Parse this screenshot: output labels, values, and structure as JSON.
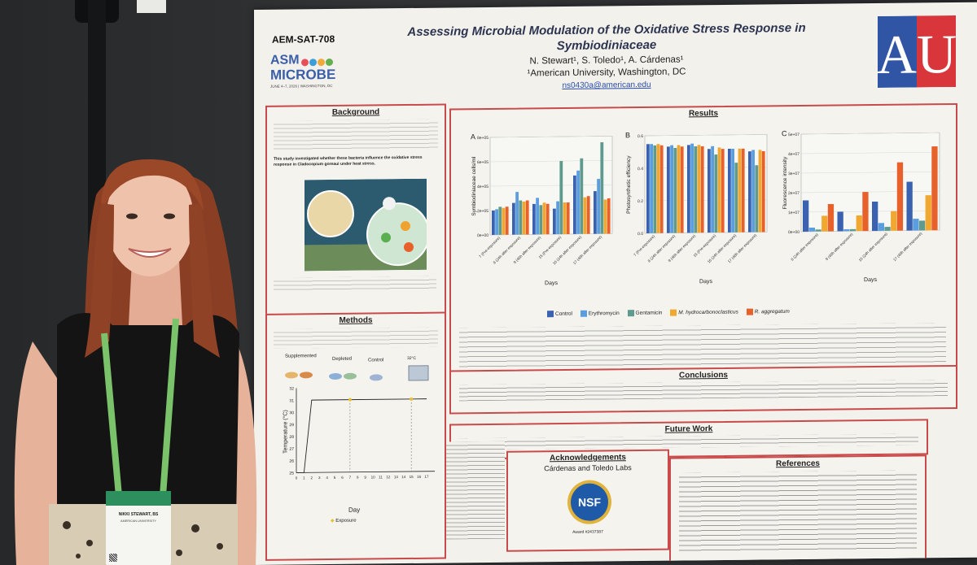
{
  "poster": {
    "id": "AEM-SAT-708",
    "title_line1": "Assessing Microbial Modulation of the Oxidative Stress Response in",
    "title_line2": "Symbiodiniaceae",
    "authors": "N. Stewart¹, S. Toledo¹, A. Cárdenas¹",
    "affiliation": "¹American University, Washington, DC",
    "email": "ns0430a@american.edu",
    "asm_top": "ASM",
    "asm_bottom": "MICROBE",
    "asm_date": "JUNE 4–7, 2026 | WASHINGTON, DC",
    "au_letters": "AU",
    "background": {
      "heading": "Background",
      "key_line": "This study investigated whether these bacteria influence the oxidative stress response in Cladocopium goreaui under heat stress."
    },
    "methods": {
      "heading": "Methods",
      "groups": [
        "Supplemented",
        "Depleted",
        "Control"
      ],
      "temp_label": "32°C",
      "temp_axis": "Temperature (°C)",
      "day_axis": "Day",
      "exposure_label": "Exposure",
      "temp_ticks": [
        "32",
        "31",
        "30",
        "29",
        "28",
        "27",
        "26",
        "25"
      ],
      "day_ticks": [
        "0",
        "1",
        "2",
        "3",
        "4",
        "5",
        "6",
        "7",
        "8",
        "9",
        "10",
        "11",
        "12",
        "13",
        "14",
        "15",
        "16",
        "17"
      ]
    },
    "results": {
      "heading": "Results",
      "panel_a": "A",
      "panel_b": "B",
      "panel_c": "C",
      "a_ylabel": "Symbiodiniaceae cells/ml",
      "b_ylabel": "Photosynthetic efficiency",
      "c_ylabel": "Fluorescence intensity",
      "xlabel": "Days",
      "a_ticks": [
        "8e+05",
        "6e+05",
        "4e+05",
        "2e+05",
        "0e+00"
      ],
      "b_ticks": [
        "0.6",
        "0.4",
        "0.2",
        "0.0"
      ],
      "c_ticks": [
        "5e+07",
        "4e+07",
        "3e+07",
        "2e+07",
        "1e+07",
        "0e+00"
      ],
      "a_cats": [
        "7 (Pre-exposure)",
        "8 (24h after exposure)",
        "9 (48h after exposure)",
        "15 (Pre-exposure)",
        "16 (24h after exposure)",
        "17 (48h after exposure)"
      ],
      "c_cats": [
        "8 (24h after exposure)",
        "9 (48h after exposure)",
        "16 (24h after exposure)",
        "17 (48h after exposure)"
      ],
      "legend": [
        "Control",
        "Erythromycin",
        "Gentamicin",
        "M. hydrocarbonoclasticus",
        "R. aggregatum"
      ]
    },
    "conclusions": {
      "heading": "Conclusions"
    },
    "future": {
      "heading": "Future Work"
    },
    "ack": {
      "heading": "Acknowledgements",
      "line": "Cárdenas and Toledo Labs",
      "nsf": "NSF",
      "award": "Award #2437387"
    },
    "references": {
      "heading": "References"
    }
  },
  "badge": {
    "name": "NIKKI STEWART, BS",
    "affiliation": "AMERICAN UNIVERSITY"
  },
  "colors": {
    "control": "#3a62b0",
    "erythromycin": "#5b9ee0",
    "gentamicin": "#5f9a8e",
    "mhydro": "#f0a830",
    "ragg": "#e8602a",
    "border": "#c84a4a"
  },
  "chart_data": [
    {
      "type": "bar",
      "panel": "A",
      "categories": [
        "7 (Pre-exposure)",
        "8 (24h after exposure)",
        "9 (48h after exposure)",
        "15 (Pre-exposure)",
        "16 (24h after exposure)",
        "17 (48h after exposure)"
      ],
      "ylim": [
        0,
        800000
      ],
      "series": [
        {
          "name": "Control",
          "values": [
            200000,
            260000,
            250000,
            210000,
            480000,
            350000
          ]
        },
        {
          "name": "Erythromycin",
          "values": [
            210000,
            350000,
            300000,
            270000,
            520000,
            450000
          ]
        },
        {
          "name": "Gentamicin",
          "values": [
            230000,
            280000,
            240000,
            600000,
            620000,
            750000
          ]
        },
        {
          "name": "M. hydrocarbonoclasticus",
          "values": [
            220000,
            270000,
            260000,
            260000,
            300000,
            280000
          ]
        },
        {
          "name": "R. aggregatum",
          "values": [
            230000,
            280000,
            250000,
            260000,
            310000,
            290000
          ]
        }
      ]
    },
    {
      "type": "bar",
      "panel": "B",
      "categories": [
        "7 (Pre-exposure)",
        "8 (24h after exposure)",
        "9 (48h after exposure)",
        "15 (Pre-exposure)",
        "16 (24h after exposure)",
        "17 (48h after exposure)"
      ],
      "ylim": [
        0,
        0.7
      ],
      "series": [
        {
          "name": "Control",
          "values": [
            0.64,
            0.62,
            0.63,
            0.6,
            0.6,
            0.58
          ]
        },
        {
          "name": "Erythromycin",
          "values": [
            0.64,
            0.63,
            0.64,
            0.62,
            0.6,
            0.59
          ]
        },
        {
          "name": "Gentamicin",
          "values": [
            0.63,
            0.61,
            0.62,
            0.56,
            0.5,
            0.48
          ]
        },
        {
          "name": "M. hydrocarbonoclasticus",
          "values": [
            0.64,
            0.63,
            0.63,
            0.61,
            0.6,
            0.59
          ]
        },
        {
          "name": "R. aggregatum",
          "values": [
            0.63,
            0.62,
            0.62,
            0.6,
            0.6,
            0.58
          ]
        }
      ]
    },
    {
      "type": "bar",
      "panel": "C",
      "categories": [
        "8 (24h after exposure)",
        "9 (48h after exposure)",
        "16 (24h after exposure)",
        "17 (48h after exposure)"
      ],
      "ylim": [
        0,
        50000000
      ],
      "series": [
        {
          "name": "Control",
          "values": [
            16000000,
            10000000,
            15000000,
            25000000
          ]
        },
        {
          "name": "Erythromycin",
          "values": [
            2000000,
            1000000,
            4000000,
            6000000
          ]
        },
        {
          "name": "Gentamicin",
          "values": [
            1000000,
            1000000,
            2000000,
            5000000
          ]
        },
        {
          "name": "M. hydrocarbonoclasticus",
          "values": [
            8000000,
            8000000,
            10000000,
            18000000
          ]
        },
        {
          "name": "R. aggregatum",
          "values": [
            14000000,
            20000000,
            35000000,
            43000000
          ]
        }
      ]
    },
    {
      "type": "line",
      "panel": "Methods temperature profile",
      "x": [
        0,
        1,
        2,
        17
      ],
      "y": [
        25,
        25,
        31,
        31
      ],
      "ylim": [
        25,
        32
      ],
      "xlim": [
        0,
        17
      ]
    }
  ]
}
